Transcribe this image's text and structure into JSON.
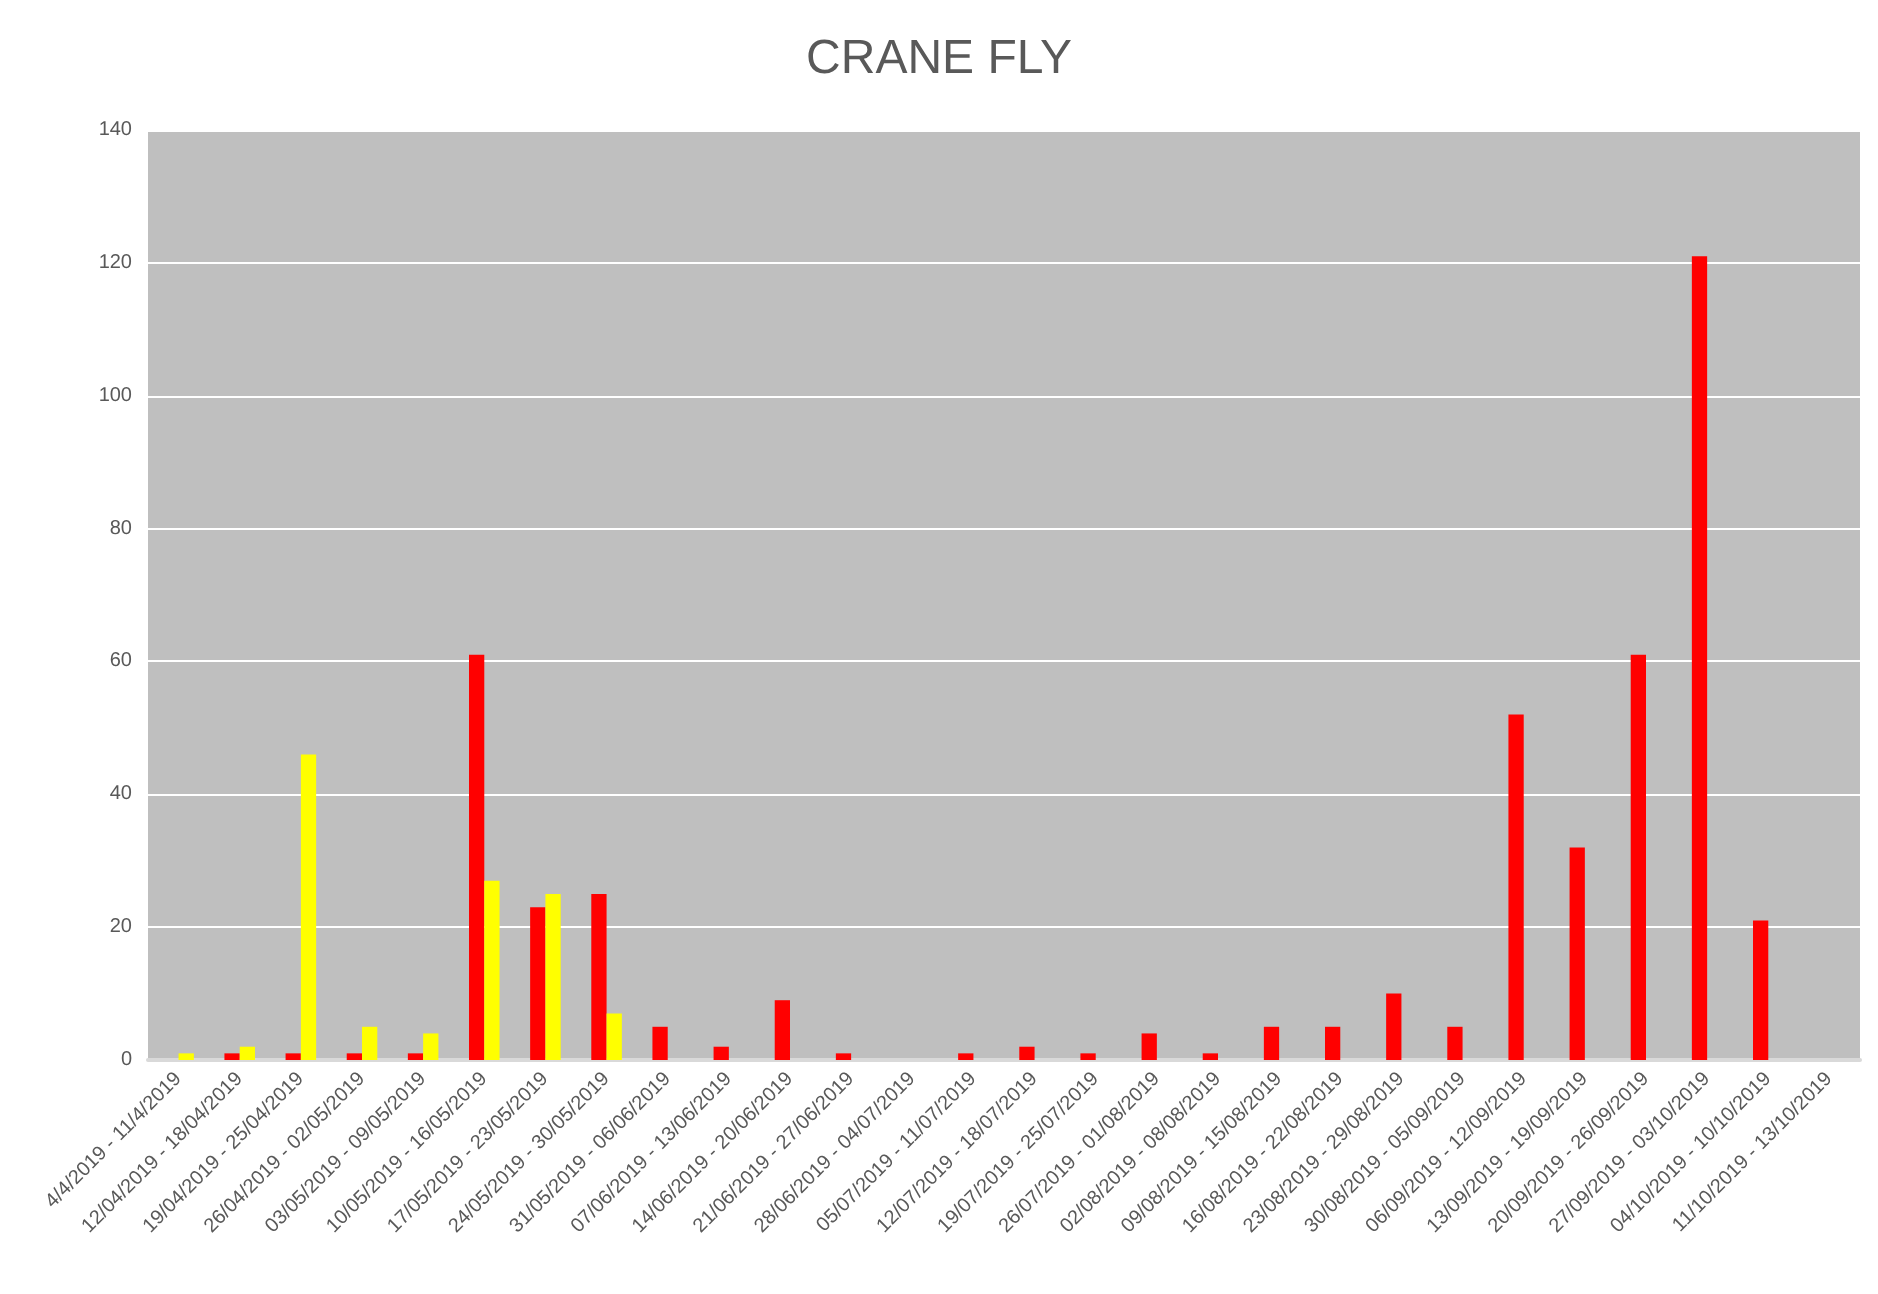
{
  "chart_data": {
    "type": "bar",
    "title": "CRANE FLY",
    "categories": [
      "4/4/2019 - 11/4/2019",
      "12/04/2019 - 18/04/2019",
      "19/04/2019 - 25/04/2019",
      "26/04/2019 - 02/05/2019",
      "03/05/2019 - 09/05/2019",
      "10/05/2019 - 16/05/2019",
      "17/05/2019 - 23/05/2019",
      "24/05/2019 - 30/05/2019",
      "31/05/2019 - 06/06/2019",
      "07/06/2019 - 13/06/2019",
      "14/06/2019 - 20/06/2019",
      "21/06/2019 - 27/06/2019",
      "28/06/2019 - 04/07/2019",
      "05/07/2019 - 11/07/2019",
      "12/07/2019 - 18/07/2019",
      "19/07/2019 - 25/07/2019",
      "26/07/2019 - 01/08/2019",
      "02/08/2019 - 08/08/2019",
      "09/08/2019 - 15/08/2019",
      "16/08/2019 - 22/08/2019",
      "23/08/2019 - 29/08/2019",
      "30/08/2019 - 05/09/2019",
      "06/09/2019 - 12/09/2019",
      "13/09/2019 - 19/09/2019",
      "20/09/2019 - 26/09/2019",
      "27/09/2019 - 03/10/2019",
      "04/10/2019 - 10/10/2019",
      "11/10/2019 - 13/10/2019"
    ],
    "series": [
      {
        "color": "#ff0000",
        "values": [
          null,
          1,
          1,
          1,
          1,
          61,
          23,
          25,
          5,
          2,
          9,
          1,
          null,
          1,
          2,
          1,
          4,
          1,
          5,
          5,
          10,
          5,
          52,
          32,
          61,
          121,
          21,
          null
        ]
      },
      {
        "color": "#ffff00",
        "values": [
          1,
          2,
          46,
          5,
          4,
          27,
          25,
          7,
          null,
          null,
          null,
          null,
          null,
          null,
          null,
          null,
          null,
          null,
          null,
          null,
          null,
          null,
          null,
          null,
          null,
          null,
          null,
          null
        ]
      }
    ],
    "ylim": [
      0,
      140
    ],
    "yticks": [
      0,
      20,
      40,
      60,
      80,
      100,
      120,
      140
    ],
    "grid": "y"
  }
}
